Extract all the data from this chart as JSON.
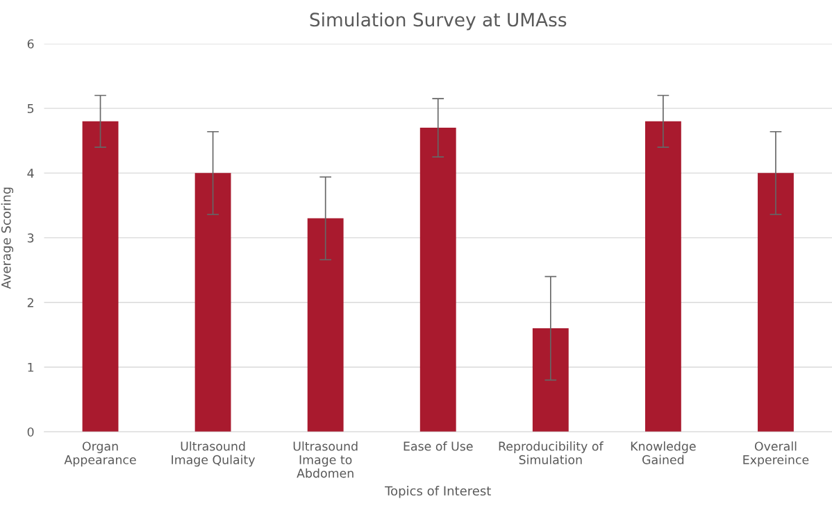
{
  "chart_data": {
    "type": "bar",
    "title": "Simulation Survey at UMAss",
    "xlabel": "Topics of Interest",
    "ylabel": "Average Scoring",
    "categories": [
      "Organ\nAppearance",
      "Ultrasound\nImage Qulaity",
      "Ultrasound\nImage to\nAbdomen",
      "Ease of Use",
      "Reproducibility of\nSimulation",
      "Knowledge\nGained",
      "Overall\nExpereince"
    ],
    "values": [
      4.8,
      4.0,
      3.3,
      4.7,
      1.6,
      4.8,
      4.0
    ],
    "errors": [
      0.4,
      0.64,
      0.64,
      0.45,
      0.8,
      0.4,
      0.64
    ],
    "color": "#a91a2e",
    "ylim": [
      0,
      6
    ],
    "yticks": [
      0,
      1,
      2,
      3,
      4,
      5,
      6
    ],
    "grid": "y"
  }
}
